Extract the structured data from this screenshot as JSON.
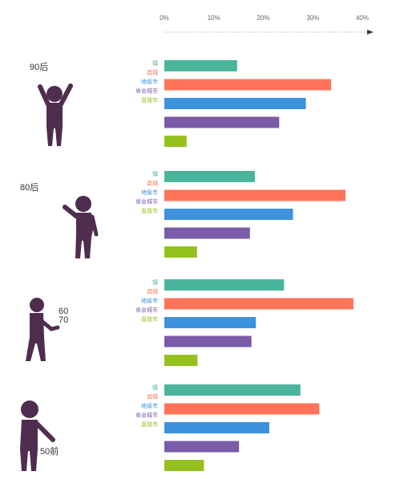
{
  "chart_data": {
    "type": "bar",
    "orientation": "horizontal",
    "axis": {
      "ticks": [
        "0%",
        "10%",
        "20%",
        "30%",
        "40%"
      ],
      "xlim": [
        0,
        40
      ],
      "position": "top"
    },
    "grid": false,
    "legend_placement": "left of each bar group",
    "categories": [
      "镇",
      "县城",
      "地级市",
      "省会城市",
      "直辖市"
    ],
    "colors": [
      "#4bb59c",
      "#ff735a",
      "#3c92dc",
      "#7a5ba8",
      "#95c11f"
    ],
    "figure_color": "#4f2d4f",
    "groups": [
      {
        "label": "90后",
        "icon": "person-arms-raised-icon",
        "values": [
          14.7,
          33.7,
          28.6,
          23.2,
          4.5
        ]
      },
      {
        "label": "80后",
        "icon": "person-waving-icon",
        "values": [
          18.3,
          36.6,
          26.0,
          17.3,
          6.6
        ]
      },
      {
        "label": "60\n70",
        "icon": "person-pointing-icon",
        "values": [
          24.2,
          38.2,
          18.5,
          17.6,
          6.7
        ]
      },
      {
        "label": "50前",
        "icon": "person-pointing-down-icon",
        "values": [
          27.5,
          31.3,
          21.2,
          15.1,
          8.0
        ]
      }
    ]
  }
}
